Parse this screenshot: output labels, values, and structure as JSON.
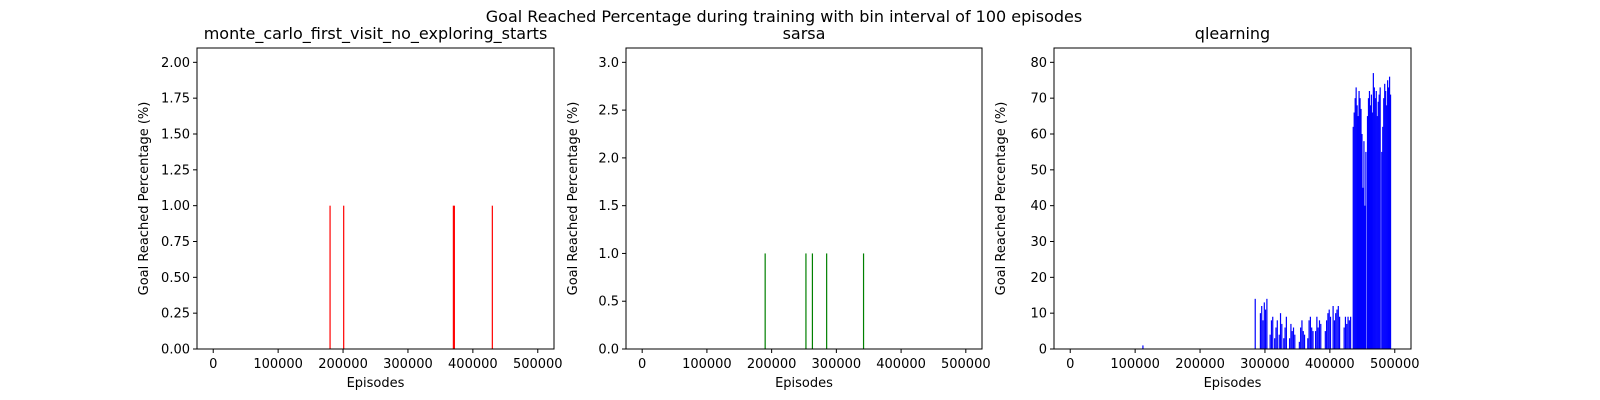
{
  "figure": {
    "title": "Goal Reached Percentage during training with bin interval of 100 episodes"
  },
  "chart_data": [
    {
      "type": "bar",
      "title": "monte_carlo_first_visit_no_exploring_starts",
      "xlabel": "Episodes",
      "ylabel": "Goal Reached Percentage (%)",
      "xlim": [
        -25000,
        525000
      ],
      "ylim": [
        0,
        2.1
      ],
      "xticks": [
        0,
        100000,
        200000,
        300000,
        400000,
        500000
      ],
      "yticks": [
        0.0,
        0.25,
        0.5,
        0.75,
        1.0,
        1.25,
        1.5,
        1.75,
        2.0
      ],
      "ytick_labels": [
        "0.00",
        "0.25",
        "0.50",
        "0.75",
        "1.00",
        "1.25",
        "1.50",
        "1.75",
        "2.00"
      ],
      "color": "#ff0000",
      "bar_width": 100,
      "grid": false,
      "x": [
        180000,
        201000,
        370000,
        371500,
        430000
      ],
      "values": [
        1,
        1,
        1,
        1,
        1
      ]
    },
    {
      "type": "bar",
      "title": "sarsa",
      "xlabel": "Episodes",
      "ylabel": "Goal Reached Percentage (%)",
      "xlim": [
        -25000,
        525000
      ],
      "ylim": [
        0,
        3.15
      ],
      "xticks": [
        0,
        100000,
        200000,
        300000,
        400000,
        500000
      ],
      "yticks": [
        0.0,
        0.5,
        1.0,
        1.5,
        2.0,
        2.5,
        3.0
      ],
      "ytick_labels": [
        "0.0",
        "0.5",
        "1.0",
        "1.5",
        "2.0",
        "2.5",
        "3.0"
      ],
      "color": "#008000",
      "bar_width": 100,
      "grid": false,
      "x": [
        190000,
        253000,
        263000,
        285000,
        342000
      ],
      "values": [
        1,
        1,
        1,
        1,
        1
      ]
    },
    {
      "type": "bar",
      "title": "qlearning",
      "xlabel": "Episodes",
      "ylabel": "Goal Reached Percentage (%)",
      "xlim": [
        -25000,
        525000
      ],
      "ylim": [
        0,
        84
      ],
      "xticks": [
        0,
        100000,
        200000,
        300000,
        400000,
        500000
      ],
      "yticks": [
        0,
        10,
        20,
        30,
        40,
        50,
        60,
        70,
        80
      ],
      "ytick_labels": [
        "0",
        "10",
        "20",
        "30",
        "40",
        "50",
        "60",
        "70",
        "80"
      ],
      "color": "#0000ff",
      "bar_width": 100,
      "grid": false,
      "x": [
        112000,
        285000,
        293000,
        295000,
        297000,
        299000,
        301000,
        303000,
        308000,
        310000,
        312000,
        315000,
        317000,
        319000,
        322000,
        324000,
        326000,
        329000,
        331000,
        333000,
        338000,
        340000,
        342000,
        344000,
        346000,
        353000,
        355000,
        357000,
        359000,
        361000,
        366000,
        368000,
        370000,
        372000,
        374000,
        378000,
        380000,
        382000,
        384000,
        386000,
        393000,
        395000,
        397000,
        399000,
        401000,
        405000,
        407000,
        409000,
        411000,
        413000,
        415000,
        422000,
        424000,
        426000,
        428000,
        430000,
        432000,
        436000,
        437500,
        439000,
        440500,
        442000,
        443500,
        445000,
        446500,
        448000,
        449500,
        451000,
        452500,
        454000,
        455500,
        458000,
        459500,
        461000,
        462500,
        464000,
        465500,
        467000,
        468500,
        470000,
        471500,
        473000,
        474500,
        476000,
        477500,
        480000,
        481500,
        483000,
        484500,
        486000,
        487500,
        489000,
        490500,
        492000,
        493500
      ],
      "values": [
        1,
        14,
        10,
        12,
        8,
        13,
        11,
        14,
        4,
        8,
        9,
        3,
        6,
        8,
        4,
        10,
        7,
        3,
        6,
        9,
        3,
        7,
        5,
        6,
        4,
        2,
        6,
        8,
        5,
        4,
        3,
        8,
        9,
        6,
        5,
        5,
        9,
        6,
        8,
        7,
        5,
        8,
        10,
        11,
        9,
        12,
        8,
        10,
        11,
        12,
        9,
        6,
        9,
        7,
        9,
        8,
        9,
        62,
        66,
        70,
        73,
        68,
        65,
        72,
        70,
        67,
        60,
        45,
        58,
        40,
        55,
        65,
        70,
        72,
        68,
        71,
        66,
        77,
        73,
        70,
        72,
        65,
        69,
        71,
        73,
        55,
        62,
        70,
        74,
        72,
        68,
        75,
        73,
        76,
        71
      ]
    }
  ]
}
